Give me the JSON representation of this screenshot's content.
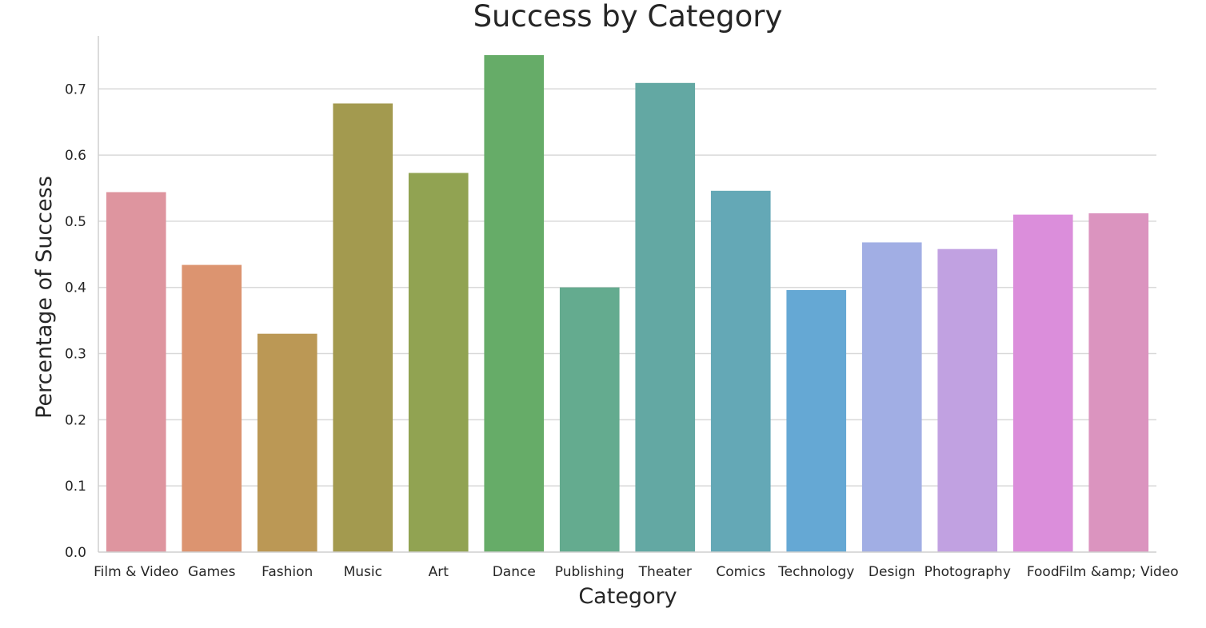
{
  "chart_data": {
    "type": "bar",
    "title": "Success by Category",
    "xlabel": "Category",
    "ylabel": "Percentage of Success",
    "ylim": [
      0,
      0.78
    ],
    "yticks": [
      "0.0",
      "0.1",
      "0.2",
      "0.3",
      "0.4",
      "0.5",
      "0.6",
      "0.7"
    ],
    "grid": "horizontal",
    "categories": [
      "Film & Video",
      "Games",
      "Fashion",
      "Music",
      "Art",
      "Dance",
      "Publishing",
      "Theater",
      "Comics",
      "Technology",
      "Design",
      "Photography",
      "Food",
      "Film &amp; Video"
    ],
    "values": [
      0.544,
      0.434,
      0.33,
      0.678,
      0.573,
      0.751,
      0.4,
      0.709,
      0.546,
      0.396,
      0.468,
      0.458,
      0.51,
      0.512
    ],
    "colors": [
      "#de959f",
      "#dc9470",
      "#bb9855",
      "#a39a4f",
      "#91a352",
      "#66ac68",
      "#64ab8f",
      "#63a8a3",
      "#64a8b6",
      "#65a8d4",
      "#a1aee4",
      "#c1a1e1",
      "#db8edb",
      "#db94bf"
    ]
  }
}
